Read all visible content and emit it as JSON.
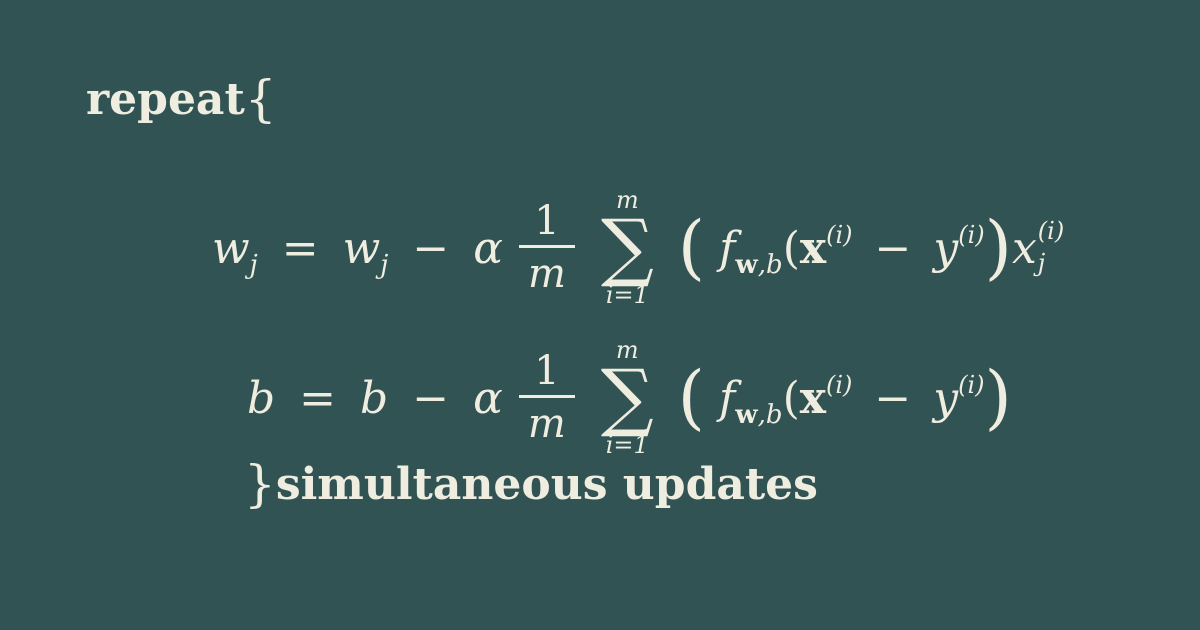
{
  "content": {
    "repeat_word": "repeat",
    "open_brace": "{",
    "close_brace": "}",
    "simultaneous_text": "simultaneous updates",
    "equation_1": {
      "lhs": "w",
      "lhs_sub": "j",
      "equals": "=",
      "rhs_var": "w",
      "rhs_sub": "j",
      "minus": "−",
      "alpha": "α",
      "fraction_num": "1",
      "fraction_den": "m",
      "sum_upper": "m",
      "sum_lower": "i=1",
      "sum_symbol": "∑",
      "open_paren": "(",
      "close_paren": ")",
      "f": "f",
      "f_sub_bold": "w",
      "f_sub_rest": ",b",
      "inner_open": "(",
      "x": "x",
      "x_sup": "(i)",
      "inner_minus": "−",
      "y": "y",
      "y_sup": "(i)",
      "trail_var": "x",
      "trail_sup": "(i)",
      "trail_sub": "j"
    },
    "equation_2": {
      "lhs": "b",
      "equals": "=",
      "rhs_var": "b",
      "minus": "−",
      "alpha": "α",
      "fraction_num": "1",
      "fraction_den": "m",
      "sum_upper": "m",
      "sum_lower": "i=1",
      "sum_symbol": "∑",
      "open_paren": "(",
      "close_paren": ")",
      "f": "f",
      "f_sub_bold": "w",
      "f_sub_rest": ",b",
      "inner_open": "(",
      "x": "x",
      "x_sup": "(i)",
      "inner_minus": "−",
      "y": "y",
      "y_sup": "(i)"
    }
  }
}
